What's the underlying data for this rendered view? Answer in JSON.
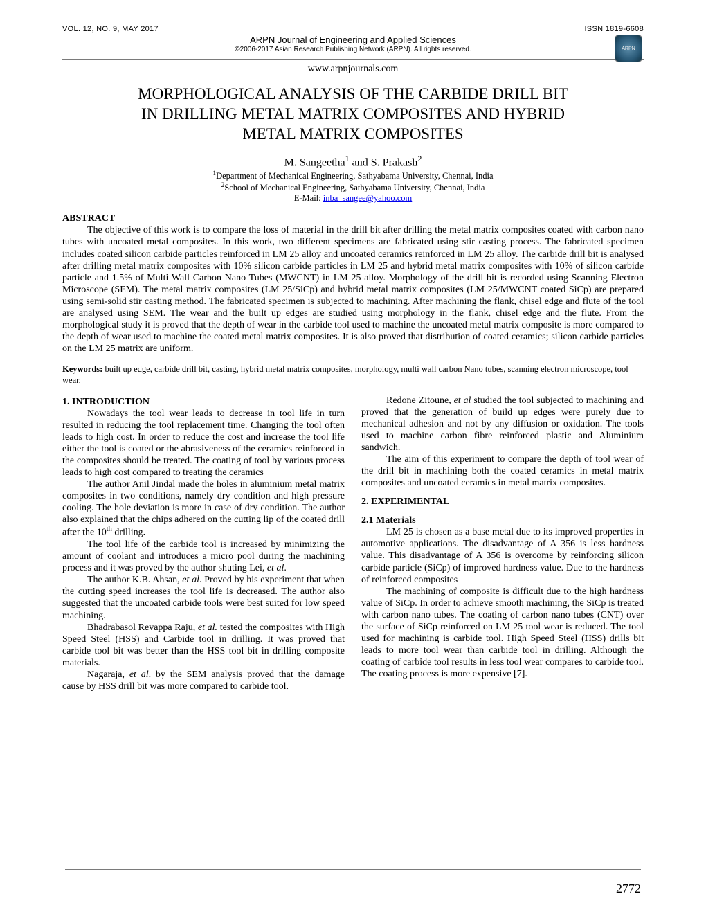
{
  "header": {
    "vol_line": "VOL. 12, NO. 9, MAY 2017",
    "issn": "ISSN 1819-6608",
    "journal": "ARPN Journal of Engineering and Applied Sciences",
    "copyright": "©2006-2017 Asian Research Publishing Network (ARPN). All rights reserved.",
    "url": "www.arpnjournals.com",
    "logo_label": "ARPN"
  },
  "title_lines": {
    "l1": "MORPHOLOGICAL ANALYSIS OF THE CARBIDE DRILL BIT",
    "l2": "IN DRILLING METAL MATRIX COMPOSITES AND HYBRID",
    "l3": "METAL MATRIX COMPOSITES"
  },
  "authors": {
    "a1": "M. Sangeetha",
    "sup1": "1",
    "and": " and ",
    "a2": "S. Prakash",
    "sup2": "2"
  },
  "affiliations": {
    "aff1_sup": "1",
    "aff1": "Department of Mechanical Engineering, Sathyabama University, Chennai, India",
    "aff2_sup": "2",
    "aff2": "School of Mechanical Engineering, Sathyabama University, Chennai, India",
    "email_label": "E-Mail: ",
    "email": "inba_sangee@yahoo.com"
  },
  "abstract": {
    "head": "ABSTRACT",
    "body": "The objective of this work is to compare the loss of material in the drill bit after drilling the metal matrix composites coated with carbon nano tubes with uncoated metal composites. In this work, two different specimens are fabricated using stir casting process. The fabricated specimen includes coated silicon carbide particles reinforced in LM 25 alloy and uncoated ceramics reinforced in LM 25 alloy. The carbide drill bit is analysed after drilling metal matrix composites with 10% silicon carbide particles in LM 25 and hybrid metal matrix composites with 10% of silicon carbide particle and 1.5% of Multi Wall Carbon Nano Tubes (MWCNT) in LM 25 alloy. Morphology of the drill bit is recorded using Scanning Electron Microscope (SEM). The metal matrix composites (LM 25/SiCp) and hybrid metal matrix composites (LM 25/MWCNT coated SiCp) are prepared using semi-solid stir casting method. The fabricated specimen is subjected to machining. After machining the flank, chisel edge and flute of the tool are analysed using SEM. The wear and the built up edges are studied using morphology in the flank, chisel edge and the flute. From the morphological study it is proved that the depth of wear in the carbide tool used to machine the uncoated metal matrix composite is more compared to the depth of wear used to machine the coated metal matrix composites. It is also proved that distribution of coated ceramics; silicon carbide particles on the LM 25 matrix are uniform."
  },
  "keywords": {
    "label": "Keywords:",
    "text": " built up edge, carbide drill bit, casting, hybrid metal matrix composites, morphology, multi wall carbon Nano tubes, scanning electron microscope, tool wear."
  },
  "body": {
    "intro_head": "1. INTRODUCTION",
    "p1": "Nowadays the tool wear leads to decrease in tool life in turn resulted in reducing the tool replacement time. Changing the tool often leads to high cost. In order to reduce the cost and increase the tool life either the tool is coated or the abrasiveness of the ceramics reinforced in the composites should be treated. The coating of tool by various process leads to high cost compared to treating the ceramics",
    "p2a": "The author Anil Jindal made the holes in aluminium metal matrix composites in two conditions, namely dry condition and high pressure cooling. The hole deviation is more in case of dry condition. The author also explained that the chips adhered on the cutting lip of the coated drill after the 10",
    "p2_th": "th",
    "p2b": " drilling.",
    "p3a": "The tool life of the carbide tool is increased by minimizing the amount of coolant and introduces a micro pool during the machining process and it was proved by the author shuting Lei, ",
    "p3i": "et al",
    "p3b": ".",
    "p4a": "The author K.B. Ahsan, ",
    "p4i": "et al",
    "p4b": ". Proved by his experiment that when the cutting speed increases the tool life is decreased. The author also suggested that the uncoated carbide tools were best suited for low speed machining.",
    "p5a": "Bhadrabasol Revappa Raju, ",
    "p5i": "et al.",
    "p5b": " tested the composites with High Speed Steel (HSS) and Carbide tool in drilling. It was proved that carbide tool bit was better than the HSS tool bit in drilling composite materials.",
    "p6a": "Nagaraja, ",
    "p6i": "et al",
    "p6b": ". by the SEM analysis proved that the damage cause by HSS drill bit was more compared to carbide tool.",
    "p7a": "Redone Zitoune, ",
    "p7i": "et al",
    "p7b": " studied the tool subjected to machining and proved that the generation of build up edges were purely due to mechanical adhesion and not by any diffusion or oxidation. The tools used to machine carbon fibre reinforced plastic and Aluminium sandwich.",
    "p8": "The aim of this experiment to compare the depth of tool wear of the drill bit in machining both the coated ceramics in metal matrix composites and uncoated ceramics in metal matrix composites.",
    "exp_head": "2. EXPERIMENTAL",
    "mat_head": "2.1 Materials",
    "p9": "LM 25 is chosen as a base metal due to its improved properties in automotive applications. The disadvantage of A 356 is less hardness value. This disadvantage of A 356 is overcome by reinforcing silicon carbide particle (SiCp) of improved hardness value. Due to the hardness of reinforced composites",
    "p10": "The machining of composite is difficult due to the high hardness value of SiCp. In order to achieve smooth machining, the SiCp is treated with carbon nano tubes. The coating of carbon nano tubes (CNT) over the surface of SiCp reinforced on LM 25 tool wear is reduced. The tool used for machining is carbide tool. High Speed Steel (HSS) drills bit leads to more tool wear than carbide tool in drilling. Although the coating of carbide tool results in less tool wear compares to carbide tool. The coating process is more expensive [7]."
  },
  "page_number": "2772"
}
